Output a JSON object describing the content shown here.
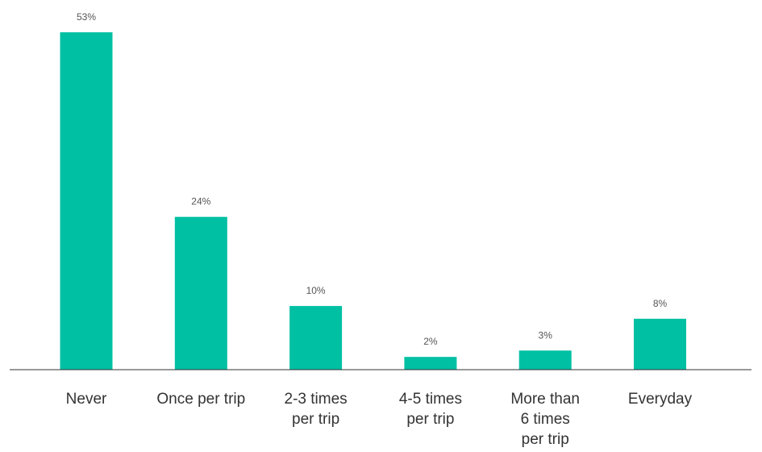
{
  "chart_data": {
    "type": "bar",
    "categories": [
      [
        "Never"
      ],
      [
        "Once per trip"
      ],
      [
        "2-3 times",
        "per trip"
      ],
      [
        "4-5 times",
        "per trip"
      ],
      [
        "More than",
        "6 times",
        "per trip"
      ],
      [
        "Everyday"
      ]
    ],
    "values": [
      53,
      24,
      10,
      2,
      3,
      8
    ],
    "value_labels": [
      "53%",
      "24%",
      "10%",
      "2%",
      "3%",
      "8%"
    ],
    "value_unit": "%",
    "ylim": [
      0,
      53
    ],
    "grid": false,
    "legend": "none",
    "bar_color": "#00c0a3"
  }
}
